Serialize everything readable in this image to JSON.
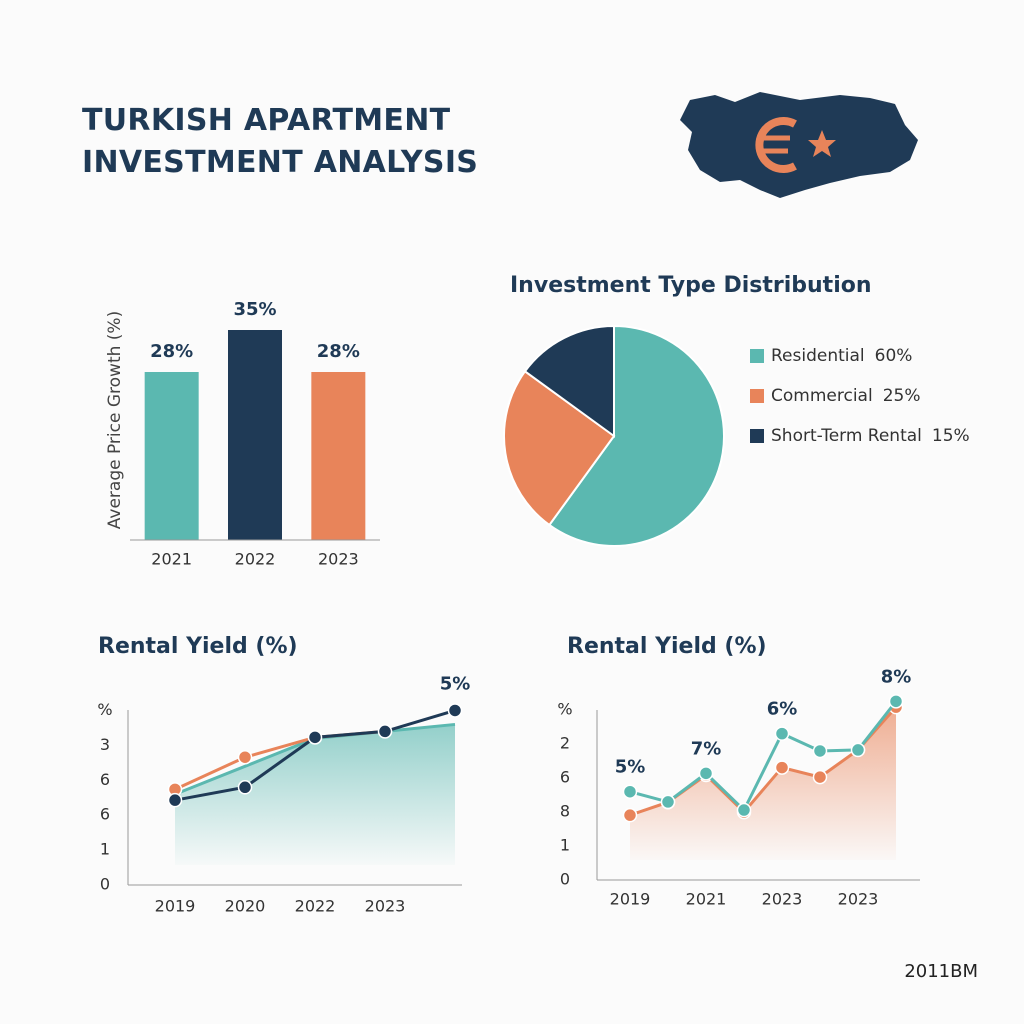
{
  "title": "TURKISH APARTMENT INVESTMENT ANALYSIS",
  "footer": "2011BM",
  "chart_data": [
    {
      "type": "bar",
      "ylabel": "Average Price Growth (%)",
      "categories": [
        "2021",
        "2022",
        "2023"
      ],
      "values": [
        28,
        35,
        28
      ],
      "value_labels": [
        "28%",
        "35%",
        "28%"
      ],
      "colors": [
        "#5bb8b0",
        "#1f3a56",
        "#e8845a"
      ],
      "ylim": [
        0,
        40
      ]
    },
    {
      "type": "pie",
      "title": "Investment Type Distribution",
      "categories": [
        "Residential",
        "Commercial",
        "Short-Term Rental"
      ],
      "values": [
        60,
        25,
        15
      ],
      "value_labels": [
        "60%",
        "25%",
        "15%"
      ],
      "colors": [
        "#5bb8b0",
        "#e8845a",
        "#1f3a56"
      ],
      "legend": "right"
    },
    {
      "type": "line",
      "title": "Rental Yield (%)",
      "categories": [
        "2019",
        "2020",
        "2022",
        "2023",
        null
      ],
      "ylim": [
        0,
        5.3
      ],
      "yticks": [
        0,
        1,
        {
          "value": 2,
          "label": "6"
        },
        {
          "value": 3,
          "label": "6"
        },
        {
          "value": 4,
          "label": "3"
        },
        {
          "value": 5,
          "label": "%"
        }
      ],
      "series": [
        {
          "color": "#5bb8b0",
          "area": true,
          "markers": false,
          "values": [
            2.6,
            3.4,
            4.2,
            4.4,
            4.6
          ]
        },
        {
          "color": "#e8845a",
          "values": [
            2.74,
            3.66,
            4.23,
            4.4,
            null
          ]
        },
        {
          "color": "#1f3a56",
          "values": [
            2.43,
            2.8,
            4.23,
            4.4,
            5
          ],
          "value_labels": [
            null,
            null,
            null,
            null,
            "5%"
          ]
        }
      ]
    },
    {
      "type": "line",
      "title": "Rental Yield (%)",
      "categories": [
        "2019",
        null,
        "2021",
        null,
        "2023",
        null,
        "2023",
        null
      ],
      "ylim": [
        0,
        5.3
      ],
      "yticks": [
        0,
        1,
        {
          "value": 2,
          "label": "8"
        },
        {
          "value": 3,
          "label": "6"
        },
        {
          "value": 4,
          "label": "2"
        },
        {
          "value": 5,
          "label": "%"
        }
      ],
      "annotations": [
        "5%",
        "7%",
        "6%",
        "8%"
      ],
      "series": [
        {
          "color": "#e8845a",
          "area": true,
          "values": [
            1.91,
            2.29,
            3.09,
            2.0,
            3.31,
            3.03,
            3.83,
            5.09
          ]
        },
        {
          "color": "#5bb8b0",
          "values": [
            2.6,
            2.3,
            3.14,
            2.06,
            4.31,
            3.8,
            3.83,
            5.26
          ]
        }
      ]
    }
  ]
}
